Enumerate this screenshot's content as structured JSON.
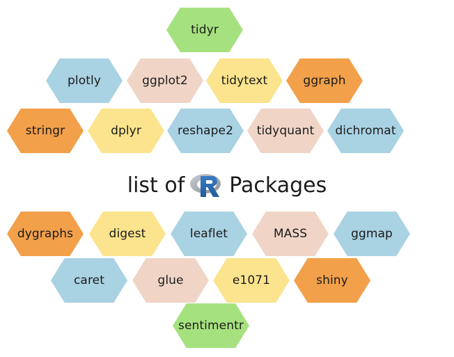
{
  "colors": {
    "green": "#a6e17f",
    "blue": "#a9d2e3",
    "pink": "#f0d5c7",
    "yellow": "#fbe48d",
    "orange": "#f2a04a"
  },
  "title": {
    "prefix": "list of",
    "logo_icon": "r-logo-icon",
    "suffix": "Packages"
  },
  "packages": [
    {
      "name": "tidyr",
      "color": "#a6e17f"
    },
    {
      "name": "plotly",
      "color": "#a9d2e3"
    },
    {
      "name": "ggplot2",
      "color": "#f0d5c7"
    },
    {
      "name": "tidytext",
      "color": "#fbe48d"
    },
    {
      "name": "ggraph",
      "color": "#f2a04a"
    },
    {
      "name": "stringr",
      "color": "#f2a04a"
    },
    {
      "name": "dplyr",
      "color": "#fbe48d"
    },
    {
      "name": "reshape2",
      "color": "#a9d2e3"
    },
    {
      "name": "tidyquant",
      "color": "#f0d5c7"
    },
    {
      "name": "dichromat",
      "color": "#a9d2e3"
    },
    {
      "name": "dygraphs",
      "color": "#f2a04a"
    },
    {
      "name": "digest",
      "color": "#fbe48d"
    },
    {
      "name": "leaflet",
      "color": "#a9d2e3"
    },
    {
      "name": "MASS",
      "color": "#f0d5c7"
    },
    {
      "name": "ggmap",
      "color": "#a9d2e3"
    },
    {
      "name": "caret",
      "color": "#a9d2e3"
    },
    {
      "name": "glue",
      "color": "#f0d5c7"
    },
    {
      "name": "e1071",
      "color": "#fbe48d"
    },
    {
      "name": "shiny",
      "color": "#f2a04a"
    },
    {
      "name": "sentimentr",
      "color": "#a6e17f"
    }
  ]
}
